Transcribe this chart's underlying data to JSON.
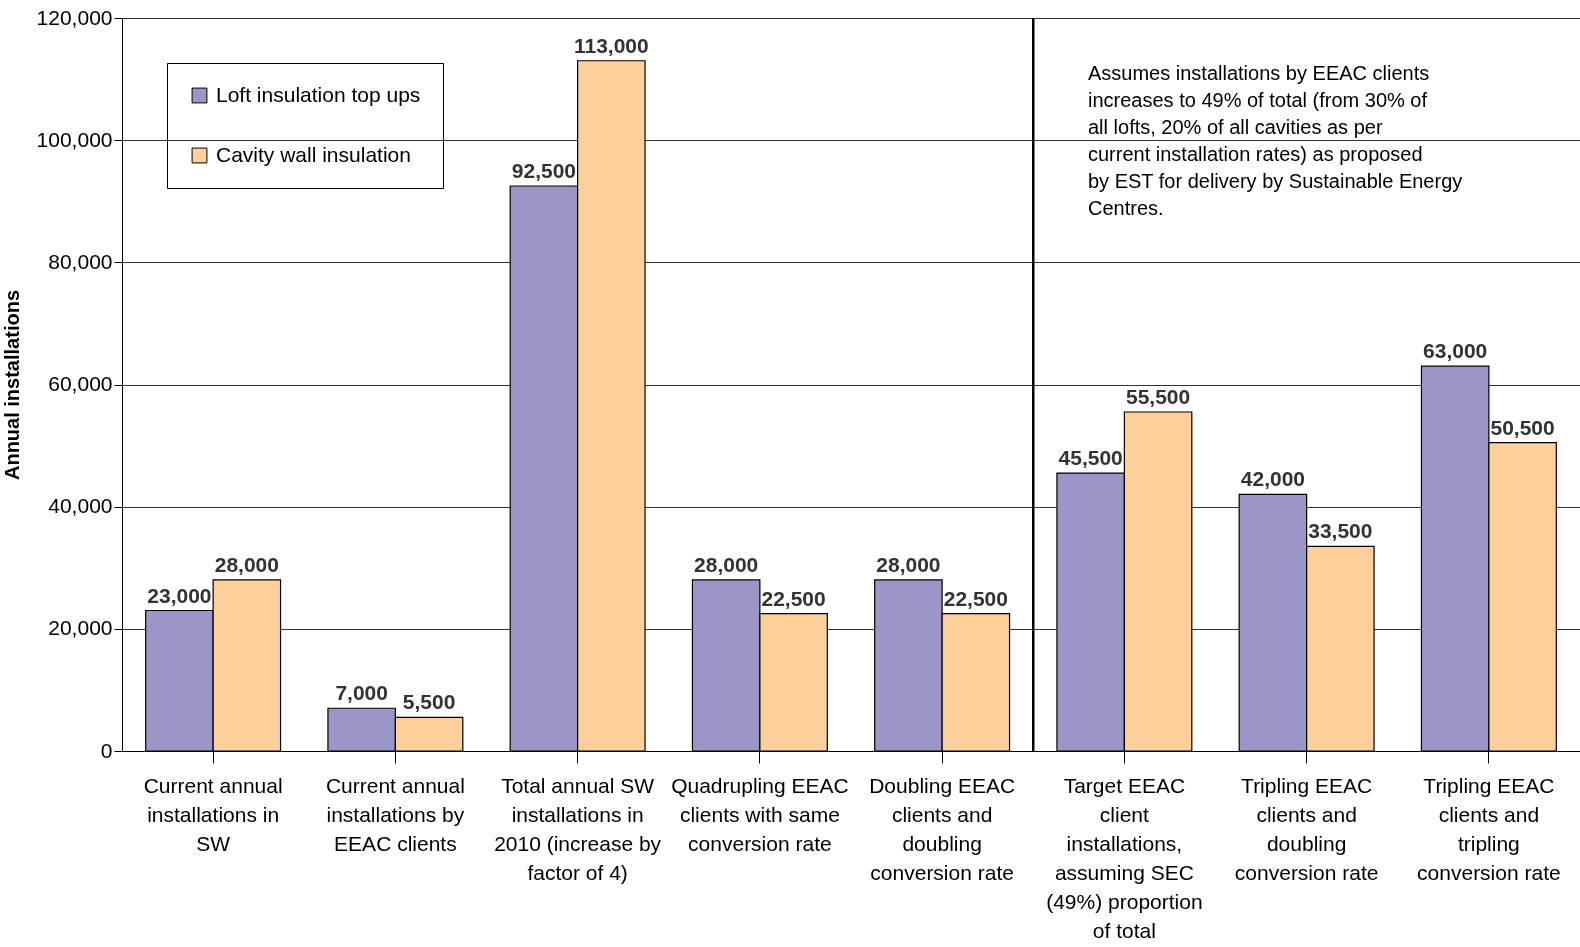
{
  "chart_data": {
    "type": "bar",
    "ylabel": "Annual installations",
    "categories": [
      "Current annual installations in SW",
      "Current annual installations by EEAC clients",
      "Total annual SW installations in 2010 (increase by factor of 4)",
      "Quadrupling EEAC clients with same conversion rate",
      "Doubling EEAC clients and doubling conversion rate",
      "Target EEAC client installations, assuming SEC (49%) proportion of total",
      "Tripling EEAC clients and doubling conversion rate",
      "Tripling EEAC clients and tripling conversion rate"
    ],
    "series": [
      {
        "name": "Loft insulation top ups",
        "color": "#9b96c8",
        "values": [
          23000,
          7000,
          92500,
          28000,
          28000,
          45500,
          42000,
          63000
        ],
        "value_labels": [
          "23,000",
          "7,000",
          "92,500",
          "28,000",
          "28,000",
          "45,500",
          "42,000",
          "63,000"
        ]
      },
      {
        "name": "Cavity wall insulation",
        "color": "#fccf9b",
        "values": [
          28000,
          5500,
          113000,
          22500,
          22500,
          55500,
          33500,
          50500
        ],
        "value_labels": [
          "28,000",
          "5,500",
          "113,000",
          "22,500",
          "22,500",
          "55,500",
          "33,500",
          "50,500"
        ]
      }
    ],
    "ylim": [
      0,
      120000
    ],
    "yticks": [
      0,
      {
        "value": 20000,
        "label": "20,000"
      },
      {
        "value": 40000,
        "label": "40,000"
      },
      {
        "value": 60000,
        "label": "60,000"
      },
      {
        "value": 80000,
        "label": "80,000"
      },
      {
        "value": 100000,
        "label": "100,000"
      },
      {
        "value": 120000,
        "label": "120,000"
      }
    ],
    "grid": "y",
    "legend": "top left",
    "ref_lines": [
      {
        "axis": "x",
        "value": "Target EEAC client installations, assuming SEC (49%) proportion of total",
        "color": "#000000"
      }
    ],
    "annotations": [
      "Assumes installations by EEAC clients increases to 49% of total (from 30% of all lofts, 20% of all cavities as per current installation rates) as proposed by EST for delivery by Sustainable Energy Centres."
    ]
  }
}
